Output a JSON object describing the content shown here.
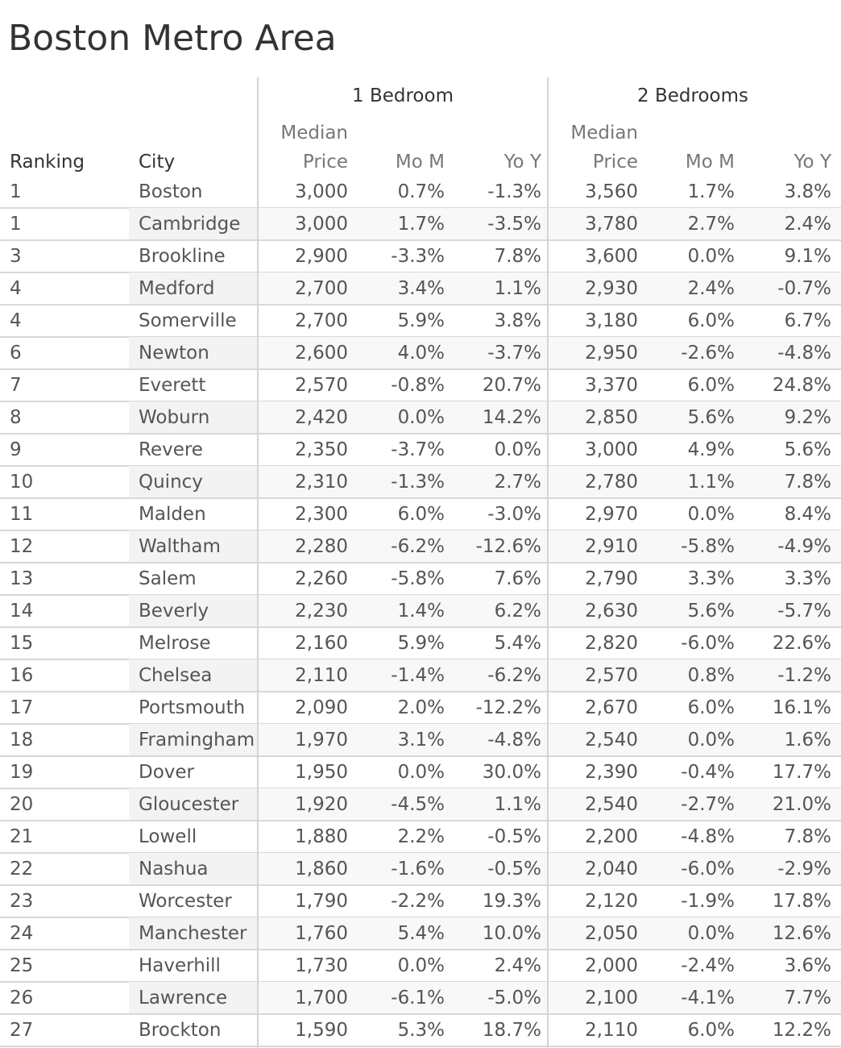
{
  "title": "Boston Metro Area",
  "chart_data": {
    "type": "table",
    "title": "Boston Metro Area",
    "groups": [
      "1 Bedroom",
      "2 Bedrooms"
    ],
    "header_median_line1": "Median",
    "header_median_line2": "Price",
    "columns": [
      "Ranking",
      "City",
      "Median Price",
      "Mo M",
      "Yo Y",
      "Median Price",
      "Mo M",
      "Yo Y"
    ],
    "column_labels": {
      "ranking": "Ranking",
      "city": "City",
      "mom": "Mo M",
      "yoy": "Yo Y"
    },
    "rows": [
      [
        "1",
        "Boston",
        "3,000",
        "0.7%",
        "-1.3%",
        "3,560",
        "1.7%",
        "3.8%"
      ],
      [
        "1",
        "Cambridge",
        "3,000",
        "1.7%",
        "-3.5%",
        "3,780",
        "2.7%",
        "2.4%"
      ],
      [
        "3",
        "Brookline",
        "2,900",
        "-3.3%",
        "7.8%",
        "3,600",
        "0.0%",
        "9.1%"
      ],
      [
        "4",
        "Medford",
        "2,700",
        "3.4%",
        "1.1%",
        "2,930",
        "2.4%",
        "-0.7%"
      ],
      [
        "4",
        "Somerville",
        "2,700",
        "5.9%",
        "3.8%",
        "3,180",
        "6.0%",
        "6.7%"
      ],
      [
        "6",
        "Newton",
        "2,600",
        "4.0%",
        "-3.7%",
        "2,950",
        "-2.6%",
        "-4.8%"
      ],
      [
        "7",
        "Everett",
        "2,570",
        "-0.8%",
        "20.7%",
        "3,370",
        "6.0%",
        "24.8%"
      ],
      [
        "8",
        "Woburn",
        "2,420",
        "0.0%",
        "14.2%",
        "2,850",
        "5.6%",
        "9.2%"
      ],
      [
        "9",
        "Revere",
        "2,350",
        "-3.7%",
        "0.0%",
        "3,000",
        "4.9%",
        "5.6%"
      ],
      [
        "10",
        "Quincy",
        "2,310",
        "-1.3%",
        "2.7%",
        "2,780",
        "1.1%",
        "7.8%"
      ],
      [
        "11",
        "Malden",
        "2,300",
        "6.0%",
        "-3.0%",
        "2,970",
        "0.0%",
        "8.4%"
      ],
      [
        "12",
        "Waltham",
        "2,280",
        "-6.2%",
        "-12.6%",
        "2,910",
        "-5.8%",
        "-4.9%"
      ],
      [
        "13",
        "Salem",
        "2,260",
        "-5.8%",
        "7.6%",
        "2,790",
        "3.3%",
        "3.3%"
      ],
      [
        "14",
        "Beverly",
        "2,230",
        "1.4%",
        "6.2%",
        "2,630",
        "5.6%",
        "-5.7%"
      ],
      [
        "15",
        "Melrose",
        "2,160",
        "5.9%",
        "5.4%",
        "2,820",
        "-6.0%",
        "22.6%"
      ],
      [
        "16",
        "Chelsea",
        "2,110",
        "-1.4%",
        "-6.2%",
        "2,570",
        "0.8%",
        "-1.2%"
      ],
      [
        "17",
        "Portsmouth",
        "2,090",
        "2.0%",
        "-12.2%",
        "2,670",
        "6.0%",
        "16.1%"
      ],
      [
        "18",
        "Framingham",
        "1,970",
        "3.1%",
        "-4.8%",
        "2,540",
        "0.0%",
        "1.6%"
      ],
      [
        "19",
        "Dover",
        "1,950",
        "0.0%",
        "30.0%",
        "2,390",
        "-0.4%",
        "17.7%"
      ],
      [
        "20",
        "Gloucester",
        "1,920",
        "-4.5%",
        "1.1%",
        "2,540",
        "-2.7%",
        "21.0%"
      ],
      [
        "21",
        "Lowell",
        "1,880",
        "2.2%",
        "-0.5%",
        "2,200",
        "-4.8%",
        "7.8%"
      ],
      [
        "22",
        "Nashua",
        "1,860",
        "-1.6%",
        "-0.5%",
        "2,040",
        "-6.0%",
        "-2.9%"
      ],
      [
        "23",
        "Worcester",
        "1,790",
        "-2.2%",
        "19.3%",
        "2,120",
        "-1.9%",
        "17.8%"
      ],
      [
        "24",
        "Manchester",
        "1,760",
        "5.4%",
        "10.0%",
        "2,050",
        "0.0%",
        "12.6%"
      ],
      [
        "25",
        "Haverhill",
        "1,730",
        "0.0%",
        "2.4%",
        "2,000",
        "-2.4%",
        "3.6%"
      ],
      [
        "26",
        "Lawrence",
        "1,700",
        "-6.1%",
        "-5.0%",
        "2,100",
        "-4.1%",
        "7.7%"
      ],
      [
        "27",
        "Brockton",
        "1,590",
        "5.3%",
        "18.7%",
        "2,110",
        "6.0%",
        "12.2%"
      ]
    ]
  }
}
